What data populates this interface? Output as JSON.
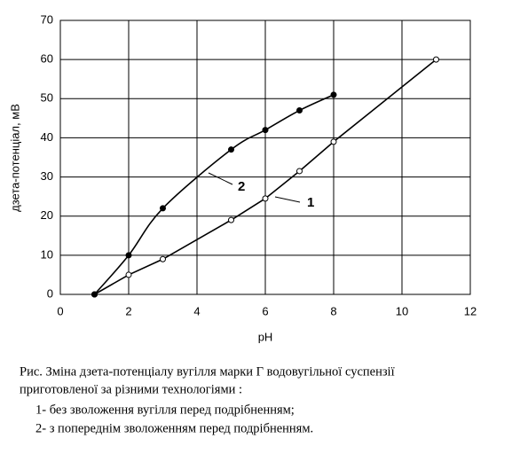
{
  "chart_data": {
    "type": "line",
    "xlabel": "pH",
    "ylabel": "дзета-потенціал, мВ",
    "xlim": [
      0,
      12
    ],
    "xticks": [
      0,
      2,
      4,
      6,
      8,
      10,
      12
    ],
    "ylim": [
      0,
      70
    ],
    "yticks": [
      0,
      10,
      20,
      30,
      40,
      50,
      60,
      70
    ],
    "grid": true,
    "series": [
      {
        "name": "1",
        "color": "#000000",
        "marker": "open",
        "x": [
          1,
          2,
          3,
          5,
          6,
          7,
          8,
          11
        ],
        "values": [
          0,
          5,
          9,
          19,
          24.5,
          31.5,
          39,
          60
        ]
      },
      {
        "name": "2",
        "color": "#000000",
        "marker": "filled",
        "smooth": true,
        "x": [
          1,
          2,
          3,
          5,
          6,
          7,
          8
        ],
        "values": [
          0,
          10,
          22,
          37,
          42,
          47,
          51
        ]
      }
    ]
  },
  "caption": {
    "lines": [
      "Рис. Зміна дзета-потенціалу вугілля марки Г водовугільної суспензії",
      "приготовленої за різними технологіями :",
      "1-  без зволоження вугілля перед подрібненням;",
      "2-  з попереднім зволоженням перед подрібненням."
    ]
  }
}
